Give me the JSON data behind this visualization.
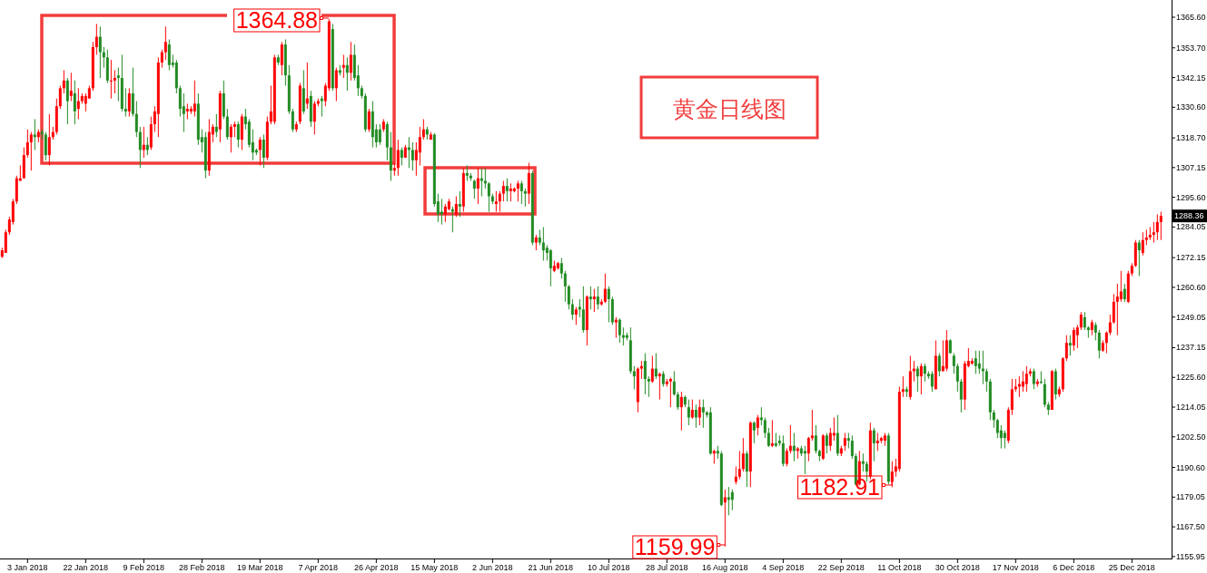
{
  "chart_data": {
    "type": "candlestick",
    "title": "黄金日线图",
    "categories": [
      null,
      null,
      null,
      null,
      null,
      null,
      null,
      "3 Jan 2018",
      null,
      null,
      null,
      null,
      null,
      null,
      null,
      null,
      null,
      null,
      null,
      null,
      null,
      null,
      null,
      "22 Jan 2018",
      null,
      null,
      null,
      null,
      null,
      null,
      null,
      null,
      null,
      null,
      null,
      null,
      null,
      null,
      null,
      "9 Feb 2018",
      null,
      null,
      null,
      null,
      null,
      null,
      null,
      null,
      null,
      null,
      null,
      null,
      null,
      null,
      null,
      "28 Feb 2018",
      null,
      null,
      null,
      null,
      null,
      null,
      null,
      null,
      null,
      null,
      null,
      null,
      null,
      null,
      null,
      "19 Mar 2018",
      null,
      null,
      null,
      null,
      null,
      null,
      null,
      null,
      null,
      null,
      null,
      null,
      null,
      null,
      null,
      "7 Apr 2018",
      null,
      null,
      null,
      null,
      null,
      null,
      null,
      null,
      null,
      null,
      null,
      null,
      null,
      null,
      null,
      "26 Apr 2018",
      null,
      null,
      null,
      null,
      null,
      null,
      null,
      null,
      null,
      null,
      null,
      null,
      null,
      null,
      null,
      "15 May 2018",
      null,
      null,
      null,
      null,
      null,
      null,
      null,
      null,
      null,
      null,
      null,
      null,
      null,
      null,
      null,
      "2 Jun 2018",
      null,
      null,
      null,
      null,
      null,
      null,
      null,
      null,
      null,
      null,
      null,
      null,
      null,
      null,
      null,
      "21 Jun 2018",
      null,
      null,
      null,
      null,
      null,
      null,
      null,
      null,
      null,
      null,
      null,
      null,
      null,
      null,
      null,
      "10 Jul 2018",
      null,
      null,
      null,
      null,
      null,
      null,
      null,
      null,
      null,
      null,
      null,
      null,
      null,
      null,
      null,
      "28 Jul 2018",
      null,
      null,
      null,
      null,
      null,
      null,
      null,
      null,
      null,
      null,
      null,
      null,
      null,
      null,
      null,
      "16 Aug 2018",
      null,
      null,
      null,
      null,
      null,
      null,
      null,
      null,
      null,
      null,
      null,
      null,
      null,
      null,
      null,
      "4 Sep 2018",
      null,
      null,
      null,
      null,
      null,
      null,
      null,
      null,
      null,
      null,
      null,
      null,
      null,
      null,
      null,
      "22 Sep 2018",
      null,
      null,
      null,
      null,
      null,
      null,
      null,
      null,
      null,
      null,
      null,
      null,
      null,
      null,
      null,
      "11 Oct 2018",
      null,
      null,
      null,
      null,
      null,
      null,
      null,
      null,
      null,
      null,
      null,
      null,
      null,
      null,
      null,
      "30 Oct 2018",
      null,
      null,
      null,
      null,
      null,
      null,
      null,
      null,
      null,
      null,
      null,
      null,
      null,
      null,
      null,
      "17 Nov 2018",
      null,
      null,
      null,
      null,
      null,
      null,
      null,
      null,
      null,
      null,
      null,
      null,
      null,
      null,
      null,
      "6 Dec 2018",
      null,
      null,
      null,
      null,
      null,
      null,
      null,
      null,
      null,
      null,
      null,
      null,
      null,
      null,
      null,
      "25 Dec 2018",
      null,
      null,
      null,
      null,
      null,
      null,
      null,
      null
    ],
    "ohlc": [
      [
        1272.5,
        1276,
        1272,
        1275
      ],
      [
        1274,
        1283,
        1274,
        1282
      ],
      [
        1282,
        1288,
        1281,
        1287
      ],
      [
        1286,
        1295,
        1285,
        1294
      ],
      [
        1294,
        1304,
        1293,
        1303
      ],
      [
        1302,
        1308,
        1302,
        1303
      ],
      [
        1303,
        1315,
        1303,
        1312
      ],
      [
        1312,
        1322,
        1311,
        1317
      ],
      [
        1317,
        1321,
        1306,
        1320
      ],
      [
        1320,
        1326,
        1314,
        1319
      ],
      [
        1319,
        1322,
        1317,
        1321
      ],
      [
        1321,
        1322,
        1318,
        1320
      ],
      [
        1320,
        1321,
        1310,
        1312
      ],
      [
        1312,
        1328,
        1308,
        1319
      ],
      [
        1319,
        1323,
        1318,
        1321
      ],
      [
        1321,
        1334,
        1320,
        1331
      ],
      [
        1331,
        1339,
        1330,
        1338
      ],
      [
        1338,
        1345,
        1336,
        1341
      ],
      [
        1341,
        1342,
        1324,
        1333
      ],
      [
        1335,
        1344,
        1333,
        1337
      ],
      [
        1336,
        1341,
        1324,
        1329
      ],
      [
        1330,
        1338,
        1326,
        1333
      ],
      [
        1333,
        1336,
        1332,
        1335
      ],
      [
        1332,
        1336,
        1329,
        1335
      ],
      [
        1334,
        1339,
        1334,
        1338
      ],
      [
        1338,
        1356,
        1337,
        1354
      ],
      [
        1354,
        1363,
        1351,
        1358
      ],
      [
        1358,
        1362,
        1342,
        1352
      ],
      [
        1352,
        1354,
        1346,
        1350
      ],
      [
        1350,
        1353,
        1340,
        1341
      ],
      [
        1341,
        1349,
        1334,
        1341
      ],
      [
        1341,
        1345,
        1336,
        1342
      ],
      [
        1343,
        1346,
        1333,
        1342
      ],
      [
        1342,
        1351,
        1329,
        1330
      ],
      [
        1330,
        1338,
        1327,
        1329
      ],
      [
        1329,
        1338,
        1327,
        1336
      ],
      [
        1336,
        1346,
        1327,
        1328
      ],
      [
        1328,
        1333,
        1319,
        1321
      ],
      [
        1321,
        1323,
        1307,
        1314
      ],
      [
        1314,
        1323,
        1311,
        1316
      ],
      [
        1316,
        1319,
        1312,
        1314
      ],
      [
        1315,
        1327,
        1314,
        1324
      ],
      [
        1324,
        1331,
        1321,
        1329
      ],
      [
        1328,
        1350,
        1319,
        1348
      ],
      [
        1348,
        1353,
        1346,
        1352
      ],
      [
        1352,
        1362,
        1349,
        1356
      ],
      [
        1355,
        1357,
        1345,
        1347
      ],
      [
        1348,
        1351,
        1346,
        1347
      ],
      [
        1348,
        1349,
        1336,
        1338
      ],
      [
        1338,
        1339,
        1327,
        1330
      ],
      [
        1331,
        1336,
        1321,
        1328
      ],
      [
        1329,
        1332,
        1326,
        1330
      ],
      [
        1329,
        1331,
        1328,
        1330
      ],
      [
        1329,
        1341,
        1327,
        1332
      ],
      [
        1332,
        1336,
        1316,
        1318
      ],
      [
        1319,
        1322,
        1313,
        1317
      ],
      [
        1319,
        1321,
        1303,
        1306
      ],
      [
        1306,
        1326,
        1304,
        1321
      ],
      [
        1320,
        1324,
        1317,
        1323
      ],
      [
        1323,
        1328,
        1319,
        1321
      ],
      [
        1322,
        1337,
        1317,
        1336
      ],
      [
        1336,
        1341,
        1326,
        1327
      ],
      [
        1327,
        1330,
        1318,
        1319
      ],
      [
        1319,
        1324,
        1313,
        1323
      ],
      [
        1323,
        1325,
        1319,
        1324
      ],
      [
        1324,
        1325,
        1315,
        1318
      ],
      [
        1318,
        1328,
        1314,
        1327
      ],
      [
        1327,
        1330,
        1322,
        1324
      ],
      [
        1325,
        1326,
        1315,
        1316
      ],
      [
        1317,
        1322,
        1310,
        1313
      ],
      [
        1314,
        1314.5,
        1312,
        1313
      ],
      [
        1314,
        1319,
        1308,
        1318
      ],
      [
        1318,
        1320,
        1307,
        1311
      ],
      [
        1311,
        1327,
        1310,
        1325
      ],
      [
        1325,
        1339,
        1324,
        1329
      ],
      [
        1325,
        1351,
        1324,
        1350
      ],
      [
        1350,
        1351,
        1347,
        1348
      ],
      [
        1347,
        1356,
        1343,
        1355
      ],
      [
        1355,
        1357,
        1339,
        1343
      ],
      [
        1343,
        1347,
        1328,
        1329
      ],
      [
        1329,
        1330,
        1321,
        1322
      ],
      [
        1322,
        1325,
        1321,
        1324
      ],
      [
        1325,
        1340,
        1324,
        1339
      ],
      [
        1338,
        1345,
        1328,
        1329
      ],
      [
        1332,
        1348,
        1330,
        1334
      ],
      [
        1335,
        1337,
        1323,
        1325
      ],
      [
        1325,
        1333,
        1320,
        1332
      ],
      [
        1332,
        1334,
        1331,
        1333
      ],
      [
        1334,
        1335,
        1327,
        1333
      ],
      [
        1333,
        1340,
        1331,
        1339
      ],
      [
        1338,
        1364.88,
        1337,
        1364
      ],
      [
        1361,
        1363,
        1337,
        1338
      ],
      [
        1338,
        1346,
        1333,
        1345
      ],
      [
        1345,
        1347,
        1343,
        1344
      ],
      [
        1346,
        1351,
        1342,
        1347
      ],
      [
        1347,
        1350,
        1337,
        1344
      ],
      [
        1344,
        1356,
        1341,
        1351
      ],
      [
        1351,
        1355,
        1341,
        1342
      ],
      [
        1343,
        1347,
        1335,
        1338
      ],
      [
        1338,
        1339,
        1334,
        1335
      ],
      [
        1335,
        1336,
        1321,
        1322
      ],
      [
        1322,
        1330,
        1321,
        1329
      ],
      [
        1329,
        1333,
        1315,
        1319
      ],
      [
        1322,
        1324,
        1315,
        1317
      ],
      [
        1322,
        1324,
        1316,
        1317
      ],
      [
        1322,
        1326,
        1321,
        1325
      ],
      [
        1324,
        1325,
        1310,
        1315
      ],
      [
        1315,
        1321,
        1302,
        1306
      ],
      [
        1306,
        1309,
        1304,
        1307
      ],
      [
        1307,
        1318,
        1304,
        1314
      ],
      [
        1314,
        1315,
        1308,
        1311
      ],
      [
        1311,
        1316,
        1311,
        1315
      ],
      [
        1315,
        1319,
        1307,
        1314
      ],
      [
        1314,
        1317,
        1306,
        1310
      ],
      [
        1310,
        1317,
        1304,
        1314
      ],
      [
        1313,
        1323,
        1308,
        1319
      ],
      [
        1319,
        1326,
        1318,
        1322
      ],
      [
        1322,
        1323,
        1318,
        1320
      ],
      [
        1318,
        1321,
        1318,
        1320
      ],
      [
        1320,
        1320.5,
        1292,
        1293
      ],
      [
        1294,
        1297,
        1286,
        1289
      ],
      [
        1290,
        1295,
        1285,
        1289
      ],
      [
        1289,
        1293,
        1286,
        1292
      ],
      [
        1291,
        1295,
        1290.5,
        1294
      ],
      [
        1291,
        1292,
        1282,
        1290
      ],
      [
        1289,
        1296,
        1288,
        1293
      ],
      [
        1293,
        1298,
        1288,
        1292
      ],
      [
        1292,
        1307,
        1290,
        1305
      ],
      [
        1305,
        1308,
        1302,
        1304
      ],
      [
        1304,
        1305,
        1302,
        1303
      ],
      [
        1302,
        1302.5,
        1295,
        1299
      ],
      [
        1299,
        1307,
        1293,
        1303
      ],
      [
        1303,
        1307,
        1296,
        1302
      ],
      [
        1302,
        1307,
        1299,
        1301
      ],
      [
        1301,
        1301.5,
        1290,
        1296
      ],
      [
        1296,
        1297,
        1293,
        1294
      ],
      [
        1293,
        1298,
        1290,
        1294
      ],
      [
        1294,
        1298,
        1290,
        1297
      ],
      [
        1297,
        1302,
        1294,
        1300
      ],
      [
        1300,
        1303,
        1294,
        1298
      ],
      [
        1298,
        1301,
        1294,
        1299
      ],
      [
        1298,
        1299.5,
        1297.5,
        1299
      ],
      [
        1299,
        1302,
        1294,
        1301
      ],
      [
        1301,
        1302,
        1293,
        1298
      ],
      [
        1298,
        1299,
        1292,
        1297
      ],
      [
        1297,
        1309,
        1293,
        1305
      ],
      [
        1305,
        1306,
        1277,
        1278
      ],
      [
        1278,
        1281,
        1275,
        1280
      ],
      [
        1280,
        1283,
        1277,
        1278
      ],
      [
        1278,
        1284,
        1271,
        1275
      ],
      [
        1276,
        1277,
        1271,
        1274
      ],
      [
        1275,
        1275.5,
        1261,
        1268
      ],
      [
        1267,
        1271,
        1266.5,
        1269
      ],
      [
        1268,
        1270.5,
        1267.5,
        1270
      ],
      [
        1270,
        1272,
        1264,
        1266
      ],
      [
        1266,
        1267,
        1255,
        1261
      ],
      [
        1261,
        1261.5,
        1252,
        1254
      ],
      [
        1254,
        1256,
        1248,
        1250
      ],
      [
        1250,
        1253,
        1246,
        1252
      ],
      [
        1253,
        1256,
        1249,
        1252
      ],
      [
        1252,
        1261,
        1243,
        1244
      ],
      [
        1244,
        1257.5,
        1238,
        1257
      ],
      [
        1257,
        1261,
        1252,
        1256
      ],
      [
        1256,
        1260,
        1251,
        1257
      ],
      [
        1257,
        1261,
        1252,
        1254
      ],
      [
        1254,
        1256,
        1253.5,
        1255
      ],
      [
        1255,
        1266,
        1254.5,
        1260
      ],
      [
        1260,
        1261,
        1247,
        1256
      ],
      [
        1256,
        1257,
        1246,
        1247
      ],
      [
        1247,
        1249,
        1241,
        1248
      ],
      [
        1248,
        1248.5,
        1239,
        1242
      ],
      [
        1242,
        1245,
        1238,
        1241
      ],
      [
        1242,
        1243,
        1240,
        1241
      ],
      [
        1240,
        1245,
        1227,
        1228
      ],
      [
        1228,
        1230,
        1221,
        1226
      ],
      [
        1216,
        1229.5,
        1212,
        1229
      ],
      [
        1229,
        1232,
        1225,
        1230
      ],
      [
        1232,
        1235,
        1219,
        1225
      ],
      [
        1225,
        1226,
        1218,
        1224
      ],
      [
        1224,
        1234,
        1223.5,
        1229
      ],
      [
        1229,
        1235,
        1225,
        1226
      ],
      [
        1226,
        1227.5,
        1217,
        1227
      ],
      [
        1227,
        1228,
        1222,
        1223
      ],
      [
        1223,
        1225,
        1222,
        1224
      ],
      [
        1224,
        1225.5,
        1214,
        1225
      ],
      [
        1224,
        1228,
        1218.5,
        1219
      ],
      [
        1219,
        1220,
        1213,
        1214
      ],
      [
        1214,
        1220,
        1205,
        1218
      ],
      [
        1218,
        1218.5,
        1214,
        1215
      ],
      [
        1214,
        1217,
        1207,
        1210
      ],
      [
        1210,
        1217,
        1209.5,
        1213
      ],
      [
        1213,
        1215,
        1206,
        1210
      ],
      [
        1210,
        1217,
        1207,
        1214
      ],
      [
        1214,
        1217,
        1206,
        1212
      ],
      [
        1212,
        1212.5,
        1210,
        1211
      ],
      [
        1212,
        1214,
        1195.5,
        1196
      ],
      [
        1196,
        1197.5,
        1192,
        1197
      ],
      [
        1197,
        1199,
        1194,
        1196
      ],
      [
        1196,
        1197,
        1175.5,
        1176
      ],
      [
        1177,
        1182,
        1159.99,
        1179
      ],
      [
        1179,
        1183,
        1172,
        1178
      ],
      [
        1181,
        1182,
        1174,
        1178
      ],
      [
        1185,
        1191,
        1184,
        1187
      ],
      [
        1187,
        1197,
        1186,
        1190
      ],
      [
        1190,
        1202,
        1189,
        1196
      ],
      [
        1196,
        1197,
        1183,
        1189
      ],
      [
        1189,
        1208.5,
        1183,
        1208
      ],
      [
        1208,
        1208.5,
        1200,
        1205
      ],
      [
        1206,
        1211,
        1203,
        1210
      ],
      [
        1210,
        1214,
        1207,
        1209
      ],
      [
        1209,
        1210,
        1202,
        1204
      ],
      [
        1204,
        1206,
        1198.5,
        1199
      ],
      [
        1199,
        1209,
        1198.5,
        1200
      ],
      [
        1200,
        1204,
        1198.5,
        1199
      ],
      [
        1201,
        1203,
        1199,
        1200
      ],
      [
        1200,
        1203,
        1191,
        1192
      ],
      [
        1192,
        1198,
        1191,
        1197
      ],
      [
        1197,
        1207,
        1196,
        1199
      ],
      [
        1199,
        1204,
        1193,
        1197
      ],
      [
        1197,
        1198.5,
        1194,
        1198
      ],
      [
        1198,
        1199,
        1195,
        1196
      ],
      [
        1197,
        1199,
        1188,
        1196
      ],
      [
        1196,
        1202.5,
        1193,
        1202
      ],
      [
        1202,
        1213,
        1201,
        1203
      ],
      [
        1203,
        1207,
        1196,
        1197
      ],
      [
        1197,
        1197.5,
        1193,
        1195
      ],
      [
        1194,
        1203.5,
        1193.5,
        1203
      ],
      [
        1203,
        1204,
        1196,
        1199
      ],
      [
        1199,
        1206,
        1197,
        1204
      ],
      [
        1203,
        1210,
        1201,
        1204
      ],
      [
        1204,
        1211,
        1195,
        1196
      ],
      [
        1196,
        1199,
        1195,
        1198
      ],
      [
        1199,
        1204,
        1197,
        1202
      ],
      [
        1202,
        1204,
        1198,
        1201
      ],
      [
        1201,
        1203,
        1194,
        1195
      ],
      [
        1195,
        1196,
        1183.5,
        1184
      ],
      [
        1184,
        1197,
        1183.5,
        1193
      ],
      [
        1193,
        1196,
        1189,
        1192
      ],
      [
        1192,
        1193,
        1185,
        1189
      ],
      [
        1187,
        1208,
        1186,
        1205
      ],
      [
        1205,
        1206,
        1193,
        1200
      ],
      [
        1200,
        1204,
        1197,
        1201
      ],
      [
        1201,
        1202.5,
        1200,
        1202
      ],
      [
        1201,
        1204,
        1199,
        1203
      ],
      [
        1203,
        1204,
        1184,
        1185
      ],
      [
        1185,
        1193,
        1182.91,
        1189
      ],
      [
        1189,
        1194,
        1187,
        1191
      ],
      [
        1190,
        1222,
        1189,
        1220
      ],
      [
        1220,
        1226,
        1218,
        1221
      ],
      [
        1221,
        1222,
        1218,
        1220
      ],
      [
        1218,
        1234,
        1217,
        1228
      ],
      [
        1228,
        1232,
        1224,
        1229
      ],
      [
        1229,
        1230,
        1220,
        1226
      ],
      [
        1226,
        1231,
        1219,
        1230
      ],
      [
        1230,
        1231,
        1224,
        1227
      ],
      [
        1227,
        1228,
        1225,
        1226
      ],
      [
        1227,
        1228,
        1220,
        1222
      ],
      [
        1221,
        1240,
        1221,
        1234
      ],
      [
        1234,
        1235,
        1226,
        1228
      ],
      [
        1228,
        1240,
        1228,
        1230
      ],
      [
        1229,
        1244,
        1228,
        1240
      ],
      [
        1240,
        1240.5,
        1235,
        1235
      ],
      [
        1234,
        1235,
        1227,
        1230
      ],
      [
        1230,
        1231,
        1220,
        1224
      ],
      [
        1224,
        1225,
        1212,
        1217
      ],
      [
        1217,
        1232,
        1213,
        1231
      ],
      [
        1230,
        1237,
        1229.5,
        1232
      ],
      [
        1231,
        1233,
        1230.5,
        1232
      ],
      [
        1233,
        1236,
        1227,
        1230
      ],
      [
        1231,
        1236,
        1227,
        1229
      ],
      [
        1229,
        1236,
        1223,
        1228
      ],
      [
        1228,
        1229,
        1220,
        1224
      ],
      [
        1224,
        1225,
        1209,
        1212
      ],
      [
        1212,
        1213,
        1206,
        1209
      ],
      [
        1209,
        1209.5,
        1202,
        1204
      ],
      [
        1205,
        1207,
        1198,
        1202
      ],
      [
        1204,
        1205,
        1198,
        1202
      ],
      [
        1201,
        1214,
        1200,
        1213
      ],
      [
        1213,
        1225,
        1211,
        1221
      ],
      [
        1221,
        1225,
        1220,
        1222
      ],
      [
        1222,
        1226,
        1218,
        1223
      ],
      [
        1222,
        1228,
        1220,
        1224
      ],
      [
        1223,
        1230,
        1220,
        1227
      ],
      [
        1227,
        1229,
        1226,
        1228
      ],
      [
        1228,
        1229,
        1221,
        1223
      ],
      [
        1223,
        1225,
        1222,
        1224
      ],
      [
        1224,
        1228,
        1223,
        1223.5
      ],
      [
        1223,
        1225,
        1214,
        1215
      ],
      [
        1215,
        1216,
        1211,
        1213
      ],
      [
        1213,
        1228.5,
        1213,
        1228
      ],
      [
        1228,
        1229,
        1217,
        1219
      ],
      [
        1219,
        1222,
        1218,
        1221
      ],
      [
        1221,
        1233.5,
        1220,
        1233
      ],
      [
        1233,
        1242,
        1232,
        1239
      ],
      [
        1239,
        1242,
        1234,
        1238
      ],
      [
        1238,
        1245,
        1236,
        1244
      ],
      [
        1242,
        1246,
        1237,
        1245
      ],
      [
        1245,
        1251,
        1244,
        1250
      ],
      [
        1249,
        1251,
        1244,
        1245
      ],
      [
        1245,
        1245.5,
        1241,
        1244
      ],
      [
        1244,
        1248,
        1242,
        1247
      ],
      [
        1246,
        1247,
        1240,
        1243
      ],
      [
        1243,
        1244,
        1233,
        1236
      ],
      [
        1236,
        1240,
        1235.5,
        1239
      ],
      [
        1239,
        1243.5,
        1235,
        1243
      ],
      [
        1243,
        1250,
        1242,
        1247
      ],
      [
        1247,
        1258,
        1246.5,
        1255
      ],
      [
        1255,
        1262,
        1242,
        1257
      ],
      [
        1256,
        1267,
        1255,
        1259
      ],
      [
        1260,
        1262,
        1255,
        1256
      ],
      [
        1255,
        1267,
        1254.5,
        1266
      ],
      [
        1266,
        1270,
        1265,
        1269
      ],
      [
        1269,
        1279,
        1268.5,
        1278
      ],
      [
        1278,
        1279,
        1265,
        1275
      ],
      [
        1274,
        1282,
        1273,
        1279
      ],
      [
        1279,
        1283,
        1277,
        1280
      ],
      [
        1280,
        1284,
        1279,
        1281
      ],
      [
        1281,
        1286,
        1278,
        1282
      ],
      [
        1282,
        1289,
        1279,
        1286
      ],
      [
        1286,
        1290,
        1279,
        1288.36
      ]
    ],
    "colors": [
      "#ff0000",
      "#ff0000",
      "#ff0000",
      "#ff0000",
      "#ff0000",
      "#ff0000",
      "#ff0000",
      "#ff0000",
      "#ff0000",
      "#228b22",
      "#ff0000",
      "#228b22",
      "#228b22",
      "#ff0000",
      "#ff0000",
      "#ff0000",
      "#ff0000",
      "#ff0000",
      "#228b22",
      "#ff0000",
      "#228b22",
      "#ff0000",
      "#ff0000",
      "#ff0000",
      "#ff0000",
      "#ff0000",
      "#ff0000",
      "#228b22",
      "#228b22",
      "#228b22",
      "#ff0000",
      "#ff0000",
      "#228b22",
      "#228b22",
      "#228b22",
      "#ff0000",
      "#228b22",
      "#228b22",
      "#228b22",
      "#ff0000",
      "#228b22",
      "#ff0000",
      "#ff0000",
      "#ff0000",
      "#ff0000",
      "#ff0000",
      "#228b22",
      "#228b22",
      "#228b22",
      "#228b22",
      "#228b22",
      "#ff0000",
      "#ff0000",
      "#ff0000",
      "#228b22",
      "#228b22",
      "#228b22",
      "#ff0000",
      "#ff0000",
      "#228b22",
      "#ff0000",
      "#228b22",
      "#228b22",
      "#ff0000",
      "#ff0000",
      "#228b22",
      "#ff0000",
      "#228b22",
      "#228b22",
      "#228b22",
      "#228b22",
      "#ff0000",
      "#228b22",
      "#ff0000",
      "#ff0000",
      "#ff0000",
      "#228b22",
      "#ff0000",
      "#228b22",
      "#228b22",
      "#228b22",
      "#ff0000",
      "#ff0000",
      "#228b22",
      "#ff0000",
      "#228b22",
      "#ff0000",
      "#ff0000",
      "#228b22",
      "#ff0000",
      "#ff0000",
      "#228b22",
      "#ff0000",
      "#228b22",
      "#ff0000",
      "#228b22",
      "#ff0000",
      "#228b22",
      "#228b22",
      "#228b22",
      "#228b22",
      "#ff0000",
      "#228b22",
      "#228b22",
      "#228b22",
      "#ff0000",
      "#228b22",
      "#228b22",
      "#ff0000",
      "#ff0000",
      "#228b22",
      "#ff0000",
      "#228b22",
      "#228b22",
      "#ff0000",
      "#ff0000",
      "#ff0000",
      "#228b22",
      "#ff0000",
      "#228b22",
      "#228b22",
      "#228b22",
      "#ff0000",
      "#ff0000",
      "#228b22",
      "#ff0000",
      "#228b22",
      "#ff0000",
      "#228b22",
      "#228b22",
      "#228b22",
      "#ff0000",
      "#228b22",
      "#228b22",
      "#228b22",
      "#228b22",
      "#ff0000",
      "#ff0000",
      "#ff0000",
      "#228b22",
      "#ff0000",
      "#ff0000",
      "#ff0000",
      "#228b22",
      "#228b22",
      "#ff0000",
      "#228b22",
      "#ff0000",
      "#228b22",
      "#228b22",
      "#228b22",
      "#228b22",
      "#ff0000",
      "#ff0000",
      "#228b22",
      "#228b22",
      "#228b22",
      "#228b22",
      "#ff0000",
      "#228b22",
      "#228b22",
      "#ff0000",
      "#228b22",
      "#ff0000",
      "#228b22",
      "#ff0000",
      "#ff0000",
      "#228b22",
      "#228b22",
      "#ff0000",
      "#228b22",
      "#228b22",
      "#228b22",
      "#228b22",
      "#228b22",
      "#ff0000",
      "#ff0000",
      "#228b22",
      "#228b22",
      "#ff0000",
      "#228b22",
      "#ff0000",
      "#228b22",
      "#ff0000",
      "#ff0000",
      "#228b22",
      "#228b22",
      "#ff0000",
      "#228b22",
      "#228b22",
      "#ff0000",
      "#228b22",
      "#ff0000",
      "#228b22",
      "#228b22",
      "#228b22",
      "#ff0000",
      "#228b22",
      "#228b22",
      "#ff0000",
      "#228b22",
      "#228b22",
      "#ff0000",
      "#ff0000",
      "#ff0000",
      "#228b22",
      "#ff0000",
      "#228b22",
      "#ff0000",
      "#228b22",
      "#228b22",
      "#228b22",
      "#ff0000",
      "#228b22",
      "#228b22",
      "#228b22",
      "#ff0000",
      "#ff0000",
      "#228b22",
      "#ff0000",
      "#228b22",
      "#228b22",
      "#ff0000",
      "#ff0000",
      "#228b22",
      "#228b22",
      "#ff0000",
      "#228b22",
      "#ff0000",
      "#ff0000",
      "#228b22",
      "#ff0000",
      "#ff0000",
      "#228b22",
      "#228b22",
      "#228b22",
      "#ff0000",
      "#228b22",
      "#228b22",
      "#ff0000",
      "#228b22",
      "#ff0000",
      "#ff0000",
      "#ff0000",
      "#228b22",
      "#ff0000",
      "#ff0000",
      "#ff0000",
      "#ff0000",
      "#228b22",
      "#ff0000",
      "#ff0000",
      "#228b22",
      "#ff0000",
      "#228b22",
      "#228b22",
      "#228b22",
      "#ff0000",
      "#228b22",
      "#ff0000",
      "#ff0000",
      "#228b22",
      "#228b22",
      "#228b22",
      "#228b22",
      "#ff0000",
      "#ff0000",
      "#ff0000",
      "#228b22",
      "#228b22",
      "#228b22",
      "#228b22",
      "#228b22",
      "#228b22",
      "#228b22",
      "#228b22",
      "#228b22",
      "#ff0000",
      "#ff0000",
      "#ff0000",
      "#ff0000",
      "#ff0000",
      "#ff0000",
      "#ff0000",
      "#228b22",
      "#ff0000",
      "#228b22",
      "#228b22",
      "#228b22",
      "#ff0000",
      "#228b22",
      "#ff0000",
      "#ff0000",
      "#ff0000",
      "#228b22",
      "#ff0000",
      "#ff0000",
      "#ff0000",
      "#228b22",
      "#228b22",
      "#ff0000",
      "#228b22",
      "#228b22",
      "#ff0000",
      "#ff0000",
      "#ff0000",
      "#ff0000",
      "#ff0000",
      "#ff0000",
      "#228b22",
      "#ff0000",
      "#ff0000",
      "#ff0000",
      "#228b22",
      "#ff0000",
      "#ff0000",
      "#ff0000",
      "#ff0000",
      "#ff0000",
      "#ff0000"
    ],
    "ylim": [
      1155.2,
      1372.3
    ],
    "yticks": [
      {
        "value": 1155.95,
        "label": "1155.95"
      },
      {
        "value": 1167.5,
        "label": "1167.50"
      },
      {
        "value": 1179.05,
        "label": "1179.05"
      },
      {
        "value": 1190.6,
        "label": "1190.60"
      },
      {
        "value": 1202.5,
        "label": "1202.50"
      },
      {
        "value": 1214.05,
        "label": "1214.05"
      },
      {
        "value": 1225.6,
        "label": "1225.60"
      },
      {
        "value": 1237.15,
        "label": "1237.15"
      },
      {
        "value": 1249.05,
        "label": "1249.05"
      },
      {
        "value": 1260.6,
        "label": "1260.60"
      },
      {
        "value": 1272.15,
        "label": "1272.15"
      },
      {
        "value": 1284.05,
        "label": "1284.05"
      },
      {
        "value": 1295.6,
        "label": "1295.60"
      },
      {
        "value": 1307.15,
        "label": "1307.15"
      },
      {
        "value": 1318.7,
        "label": "1318.70"
      },
      {
        "value": 1330.6,
        "label": "1330.60"
      },
      {
        "value": 1342.15,
        "label": "1342.15"
      },
      {
        "value": 1353.7,
        "label": "1353.70"
      },
      {
        "value": 1365.6,
        "label": "1365.60"
      }
    ],
    "annotations": [
      "1364.88",
      {
        "text": "1159.99",
        "x": "16 Aug 2018",
        "y": 1159.99
      },
      "1182.91",
      "1288.36"
    ]
  }
}
